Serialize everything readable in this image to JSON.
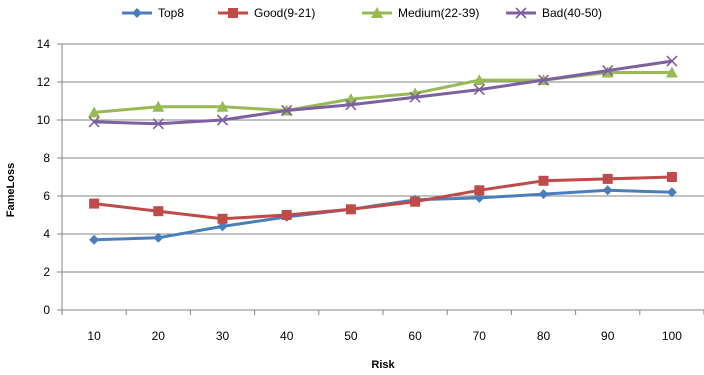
{
  "chart_data": {
    "type": "line",
    "title": "",
    "xlabel": "Risk",
    "ylabel": "FameLoss",
    "categories": [
      "10",
      "20",
      "30",
      "40",
      "50",
      "60",
      "70",
      "80",
      "90",
      "100"
    ],
    "ylim": [
      0,
      14
    ],
    "yticks": [
      "0",
      "2",
      "4",
      "6",
      "8",
      "10",
      "12",
      "14"
    ],
    "grid": "horizontal",
    "legend_position": "top",
    "series": [
      {
        "name": "Top8",
        "color": "#4a7ebb",
        "marker": "diamond",
        "values": [
          3.7,
          3.8,
          4.4,
          4.9,
          5.3,
          5.8,
          5.9,
          6.1,
          6.3,
          6.2
        ]
      },
      {
        "name": "Good(9-21)",
        "color": "#be4b48",
        "marker": "square",
        "values": [
          5.6,
          5.2,
          4.8,
          5.0,
          5.3,
          5.7,
          6.3,
          6.8,
          6.9,
          7.0
        ]
      },
      {
        "name": "Medium(22-39)",
        "color": "#98b954",
        "marker": "triangle",
        "values": [
          10.4,
          10.7,
          10.7,
          10.5,
          11.1,
          11.4,
          12.1,
          12.1,
          12.5,
          12.5
        ]
      },
      {
        "name": "Bad(40-50)",
        "color": "#7d60a0",
        "marker": "x",
        "values": [
          9.9,
          9.8,
          10.0,
          10.5,
          10.8,
          11.2,
          11.6,
          12.1,
          12.6,
          13.1
        ]
      }
    ]
  }
}
